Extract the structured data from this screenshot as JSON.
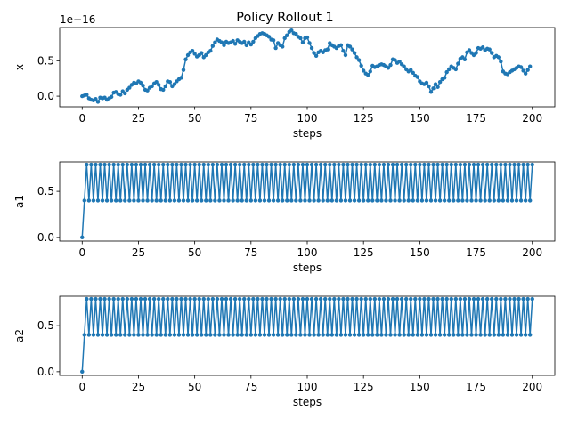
{
  "figure": {
    "title": "Policy Rollout 1",
    "line_color": "#1f77b4"
  },
  "chart_data": [
    {
      "type": "line",
      "title": "Policy Rollout 1",
      "xlabel": "steps",
      "ylabel": "x",
      "offset_label": "1e−16",
      "xlim": [
        -10,
        210
      ],
      "ylim": [
        -0.15,
        0.97
      ],
      "xticks": [
        0,
        25,
        50,
        75,
        100,
        125,
        150,
        175,
        200
      ],
      "xtick_labels": [
        "0",
        "25",
        "50",
        "75",
        "100",
        "125",
        "150",
        "175",
        "200"
      ],
      "yticks": [
        0.0,
        0.5
      ],
      "ytick_labels": [
        "0.0",
        "0.5"
      ],
      "marker": "dot",
      "series": [
        {
          "name": "x",
          "x_start": 0,
          "x_step": 1,
          "values": [
            0.0,
            0.01,
            0.02,
            -0.03,
            -0.05,
            -0.06,
            -0.04,
            -0.08,
            -0.02,
            -0.03,
            -0.02,
            -0.05,
            -0.03,
            -0.01,
            0.05,
            0.06,
            0.03,
            0.02,
            0.07,
            0.04,
            0.09,
            0.12,
            0.16,
            0.19,
            0.18,
            0.21,
            0.19,
            0.15,
            0.09,
            0.08,
            0.12,
            0.14,
            0.18,
            0.2,
            0.16,
            0.1,
            0.09,
            0.14,
            0.21,
            0.2,
            0.14,
            0.17,
            0.21,
            0.24,
            0.26,
            0.37,
            0.52,
            0.58,
            0.62,
            0.64,
            0.6,
            0.56,
            0.58,
            0.61,
            0.55,
            0.58,
            0.62,
            0.64,
            0.71,
            0.76,
            0.8,
            0.78,
            0.76,
            0.72,
            0.77,
            0.75,
            0.76,
            0.78,
            0.74,
            0.79,
            0.77,
            0.75,
            0.77,
            0.72,
            0.76,
            0.73,
            0.77,
            0.82,
            0.85,
            0.88,
            0.89,
            0.88,
            0.86,
            0.84,
            0.8,
            0.79,
            0.68,
            0.75,
            0.72,
            0.7,
            0.82,
            0.86,
            0.91,
            0.93,
            0.89,
            0.88,
            0.84,
            0.82,
            0.76,
            0.82,
            0.83,
            0.75,
            0.68,
            0.61,
            0.57,
            0.62,
            0.64,
            0.62,
            0.65,
            0.66,
            0.75,
            0.72,
            0.7,
            0.68,
            0.71,
            0.72,
            0.64,
            0.58,
            0.72,
            0.7,
            0.66,
            0.61,
            0.55,
            0.51,
            0.43,
            0.36,
            0.32,
            0.3,
            0.35,
            0.43,
            0.41,
            0.42,
            0.44,
            0.45,
            0.44,
            0.42,
            0.4,
            0.44,
            0.52,
            0.51,
            0.47,
            0.49,
            0.45,
            0.42,
            0.38,
            0.35,
            0.37,
            0.33,
            0.29,
            0.27,
            0.21,
            0.18,
            0.17,
            0.19,
            0.14,
            0.06,
            0.11,
            0.17,
            0.13,
            0.2,
            0.24,
            0.26,
            0.34,
            0.38,
            0.42,
            0.4,
            0.38,
            0.46,
            0.53,
            0.55,
            0.52,
            0.62,
            0.65,
            0.61,
            0.58,
            0.61,
            0.68,
            0.67,
            0.69,
            0.65,
            0.67,
            0.66,
            0.61,
            0.55,
            0.57,
            0.55,
            0.49,
            0.35,
            0.32,
            0.31,
            0.34,
            0.36,
            0.38,
            0.4,
            0.42,
            0.41,
            0.36,
            0.32,
            0.37,
            0.42
          ]
        }
      ]
    },
    {
      "type": "line",
      "title": "",
      "xlabel": "steps",
      "ylabel": "a1",
      "xlim": [
        -10,
        210
      ],
      "ylim": [
        -0.04,
        0.82
      ],
      "xticks": [
        0,
        25,
        50,
        75,
        100,
        125,
        150,
        175,
        200
      ],
      "xtick_labels": [
        "0",
        "25",
        "50",
        "75",
        "100",
        "125",
        "150",
        "175",
        "200"
      ],
      "yticks": [
        0.0,
        0.5
      ],
      "ytick_labels": [
        "0.0",
        "0.5"
      ],
      "marker": "dot",
      "series": [
        {
          "name": "a1",
          "x_start": 0,
          "pattern": {
            "first": 0.0,
            "odd": 0.4,
            "even": 0.79,
            "count": 201
          }
        }
      ]
    },
    {
      "type": "line",
      "title": "",
      "xlabel": "steps",
      "ylabel": "a2",
      "xlim": [
        -10,
        210
      ],
      "ylim": [
        -0.04,
        0.82
      ],
      "xticks": [
        0,
        25,
        50,
        75,
        100,
        125,
        150,
        175,
        200
      ],
      "xtick_labels": [
        "0",
        "25",
        "50",
        "75",
        "100",
        "125",
        "150",
        "175",
        "200"
      ],
      "yticks": [
        0.0,
        0.5
      ],
      "ytick_labels": [
        "0.0",
        "0.5"
      ],
      "marker": "dot",
      "series": [
        {
          "name": "a2",
          "x_start": 0,
          "pattern": {
            "first": 0.0,
            "odd": 0.4,
            "even": 0.79,
            "count": 201
          }
        }
      ]
    }
  ]
}
